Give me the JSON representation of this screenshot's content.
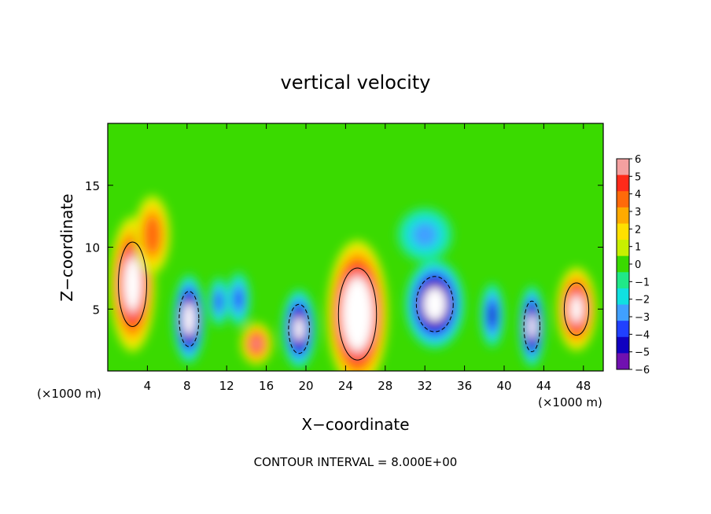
{
  "chart_data": {
    "type": "heatmap",
    "title": "vertical velocity",
    "xlabel": "X−coordinate",
    "ylabel": "Z−coordinate",
    "x_unit_left": "(×1000 m)",
    "x_unit_right": "(×1000 m)",
    "xlim": [
      0,
      50
    ],
    "ylim": [
      0,
      20
    ],
    "x_ticks": [
      4,
      8,
      12,
      16,
      20,
      24,
      28,
      32,
      36,
      40,
      44,
      48
    ],
    "y_ticks": [
      5,
      10,
      15
    ],
    "colorbar": {
      "min": -6,
      "max": 6,
      "tick_labels": [
        "6",
        "5",
        "4",
        "3",
        "2",
        "1",
        "0",
        "−1",
        "−2",
        "−3",
        "−4",
        "−5",
        "−6"
      ],
      "colors": [
        "#f4a0a0",
        "#ff2a1a",
        "#ff6a0a",
        "#ffaa00",
        "#ffe000",
        "#c8f000",
        "#3ada00",
        "#20e888",
        "#10e0e0",
        "#40a0ff",
        "#2040ff",
        "#1000c0",
        "#7010b0"
      ]
    },
    "background_value": 0.5,
    "features": [
      {
        "x": 2.5,
        "z": 7,
        "value": 9,
        "rx": 2.3,
        "rz": 5.5
      },
      {
        "x": 4.5,
        "z": 11,
        "value": 4.5,
        "rx": 1.8,
        "rz": 3.2
      },
      {
        "x": 8.2,
        "z": 4.2,
        "value": -9,
        "rx": 1.6,
        "rz": 3.6
      },
      {
        "x": 11.2,
        "z": 5.6,
        "value": -4,
        "rx": 1.0,
        "rz": 2.0
      },
      {
        "x": 13.2,
        "z": 5.8,
        "value": -3.5,
        "rx": 1.2,
        "rz": 2.2
      },
      {
        "x": 15.0,
        "z": 2.2,
        "value": 6,
        "rx": 1.6,
        "rz": 1.7
      },
      {
        "x": 19.3,
        "z": 3.4,
        "value": -8,
        "rx": 1.7,
        "rz": 3.2
      },
      {
        "x": 25.2,
        "z": 4.6,
        "value": 11,
        "rx": 3.1,
        "rz": 6.0
      },
      {
        "x": 33.0,
        "z": 5.4,
        "value": -9,
        "rx": 3.0,
        "rz": 3.6
      },
      {
        "x": 32.0,
        "z": 11.0,
        "value": -2.5,
        "rx": 2.8,
        "rz": 2.2
      },
      {
        "x": 38.8,
        "z": 4.5,
        "value": -5,
        "rx": 1.2,
        "rz": 2.6
      },
      {
        "x": 42.8,
        "z": 3.6,
        "value": -8,
        "rx": 1.3,
        "rz": 3.3
      },
      {
        "x": 47.3,
        "z": 5.0,
        "value": 8,
        "rx": 2.0,
        "rz": 3.4
      }
    ],
    "contour_interval_text": "CONTOUR INTERVAL = 8.000E+00",
    "grid": false,
    "legend": "colorbar-right"
  }
}
